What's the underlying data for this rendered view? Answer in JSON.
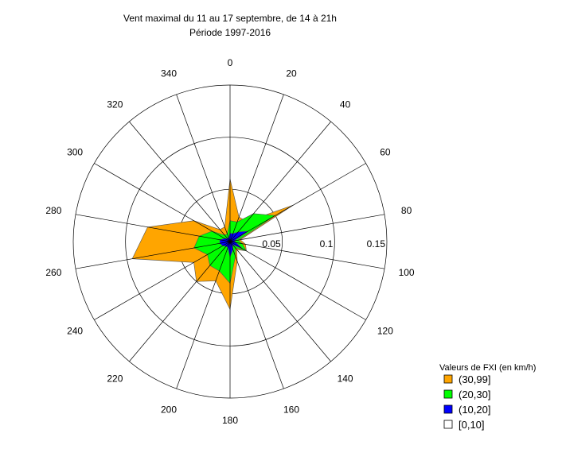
{
  "chart_data": {
    "type": "radar",
    "title": "Vent maximal du 11 au 17 septembre, de 14 à 21h",
    "subtitle": "Période 1997-2016",
    "directions": [
      0,
      20,
      40,
      60,
      80,
      100,
      120,
      140,
      160,
      180,
      200,
      220,
      240,
      260,
      280,
      300,
      320,
      340
    ],
    "direction_labels": [
      "0",
      "20",
      "40",
      "60",
      "80",
      "100",
      "120",
      "140",
      "160",
      "180",
      "200",
      "220",
      "240",
      "260",
      "280",
      "300",
      "320",
      "340"
    ],
    "radial_ticks": [
      0.05,
      0.1,
      0.15
    ],
    "radial_tick_labels": [
      "0.05",
      "0.1",
      "0.15"
    ],
    "rmax": 0.15,
    "legend_title": "Valeurs de FXI (en km/h)",
    "series": [
      {
        "name": "(30,99]",
        "color": "#ffa500",
        "values": [
          0.06,
          0.025,
          0.025,
          0.07,
          0.01,
          0.015,
          0.018,
          0.01,
          0.02,
          0.065,
          0.04,
          0.05,
          0.04,
          0.095,
          0.08,
          0.04,
          0.015,
          0.015
        ]
      },
      {
        "name": "(20,30]",
        "color": "#00ff00",
        "values": [
          0.02,
          0.02,
          0.035,
          0.05,
          0.008,
          0.012,
          0.018,
          0.008,
          0.015,
          0.04,
          0.03,
          0.03,
          0.025,
          0.035,
          0.03,
          0.02,
          0.008,
          0.008
        ]
      },
      {
        "name": "(10,20]",
        "color": "#0000ff",
        "values": [
          0.008,
          0.008,
          0.012,
          0.02,
          0.004,
          0.006,
          0.014,
          0.004,
          0.008,
          0.015,
          0.006,
          0.006,
          0.008,
          0.01,
          0.01,
          0.006,
          0.004,
          0.004
        ]
      },
      {
        "name": "[0,10]",
        "color": "#ffffff",
        "values": [
          0.001,
          0.001,
          0.001,
          0.001,
          0.001,
          0.001,
          0.001,
          0.001,
          0.001,
          0.001,
          0.001,
          0.001,
          0.001,
          0.001,
          0.001,
          0.001,
          0.001,
          0.001
        ]
      }
    ],
    "grid": true,
    "legend_position": "bottom-right"
  }
}
